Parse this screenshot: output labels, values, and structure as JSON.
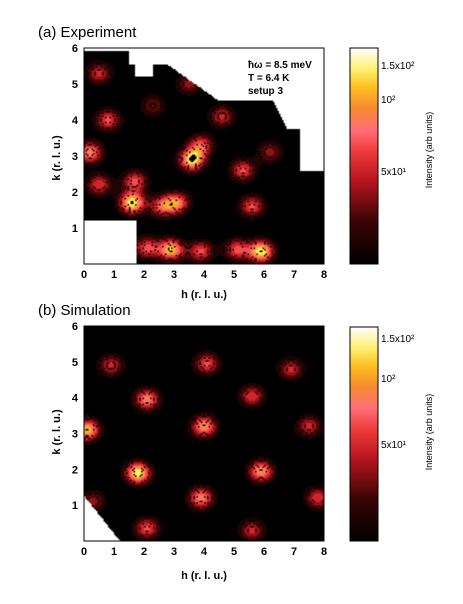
{
  "chart_data": [
    {
      "type": "heatmap",
      "title": "(a) Experiment",
      "xlabel": "h (r. l. u.)",
      "ylabel": "k (r. l. u.)",
      "xlim": [
        0,
        8
      ],
      "ylim": [
        0,
        6
      ],
      "x_ticks": [
        "0",
        "1",
        "2",
        "3",
        "4",
        "5",
        "6",
        "7",
        "8"
      ],
      "y_ticks": [
        "1",
        "2",
        "3",
        "4",
        "5",
        "6"
      ],
      "annotations": [
        "ħω = 8.5 meV",
        "T = 6.4 K",
        "setup 3"
      ],
      "colorbar": {
        "label": "Intensity (arb units)",
        "scale": "log",
        "range": [
          20,
          150
        ],
        "ticks": [
          {
            "label": "1.5x10²",
            "value": 150
          },
          {
            "label": "10²",
            "value": 100
          },
          {
            "label": "5x10¹",
            "value": 50
          }
        ]
      },
      "peaks": [
        {
          "h": 0.2,
          "k": 3.1,
          "intensity": 0.75
        },
        {
          "h": 0.5,
          "k": 5.3,
          "intensity": 0.5
        },
        {
          "h": 0.8,
          "k": 4.0,
          "intensity": 0.6
        },
        {
          "h": 0.5,
          "k": 2.2,
          "intensity": 0.55
        },
        {
          "h": 1.6,
          "k": 1.7,
          "intensity": 1.0
        },
        {
          "h": 1.7,
          "k": 2.3,
          "intensity": 0.6
        },
        {
          "h": 2.6,
          "k": 1.6,
          "intensity": 0.6
        },
        {
          "h": 3.1,
          "k": 1.7,
          "intensity": 0.7
        },
        {
          "h": 3.6,
          "k": 2.9,
          "intensity": 1.0
        },
        {
          "h": 3.9,
          "k": 3.3,
          "intensity": 0.6
        },
        {
          "h": 4.6,
          "k": 4.1,
          "intensity": 0.5
        },
        {
          "h": 5.3,
          "k": 2.6,
          "intensity": 0.6
        },
        {
          "h": 5.6,
          "k": 1.6,
          "intensity": 0.6
        },
        {
          "h": 2.9,
          "k": 0.4,
          "intensity": 0.9
        },
        {
          "h": 2.1,
          "k": 0.45,
          "intensity": 0.6
        },
        {
          "h": 3.9,
          "k": 0.35,
          "intensity": 0.6
        },
        {
          "h": 5.9,
          "k": 0.35,
          "intensity": 1.0
        },
        {
          "h": 5.1,
          "k": 0.4,
          "intensity": 0.6
        },
        {
          "h": 3.5,
          "k": 5.0,
          "intensity": 0.4
        },
        {
          "h": 2.3,
          "k": 4.4,
          "intensity": 0.35
        },
        {
          "h": 6.2,
          "k": 3.1,
          "intensity": 0.4
        },
        {
          "h": 1.1,
          "k": 0.6,
          "intensity": 0.4
        }
      ]
    },
    {
      "type": "heatmap",
      "title": "(b) Simulation",
      "xlabel": "h (r. l. u.)",
      "ylabel": "k (r. l. u.)",
      "xlim": [
        0,
        8
      ],
      "ylim": [
        0,
        6
      ],
      "x_ticks": [
        "0",
        "1",
        "2",
        "3",
        "4",
        "5",
        "6",
        "7",
        "8"
      ],
      "y_ticks": [
        "1",
        "2",
        "3",
        "4",
        "5",
        "6"
      ],
      "colorbar": {
        "label": "Intensity (arb units)",
        "scale": "log",
        "range": [
          20,
          150
        ],
        "ticks": [
          {
            "label": "1.5x10²",
            "value": 150
          },
          {
            "label": "10²",
            "value": 100
          },
          {
            "label": "5x10¹",
            "value": 50
          }
        ]
      },
      "peaks": [
        {
          "h": 0.9,
          "k": 4.9,
          "intensity": 0.5
        },
        {
          "h": 4.1,
          "k": 4.95,
          "intensity": 0.6
        },
        {
          "h": 6.9,
          "k": 4.8,
          "intensity": 0.5
        },
        {
          "h": 2.1,
          "k": 3.95,
          "intensity": 0.75
        },
        {
          "h": 5.6,
          "k": 4.05,
          "intensity": 0.55
        },
        {
          "h": 0.1,
          "k": 3.1,
          "intensity": 0.9
        },
        {
          "h": 4.0,
          "k": 3.2,
          "intensity": 0.8
        },
        {
          "h": 7.5,
          "k": 3.2,
          "intensity": 0.5
        },
        {
          "h": 1.8,
          "k": 1.9,
          "intensity": 1.0
        },
        {
          "h": 5.9,
          "k": 1.95,
          "intensity": 0.8
        },
        {
          "h": 3.9,
          "k": 1.2,
          "intensity": 0.75
        },
        {
          "h": 7.8,
          "k": 1.2,
          "intensity": 0.55
        },
        {
          "h": 2.1,
          "k": 0.35,
          "intensity": 0.6
        },
        {
          "h": 5.6,
          "k": 0.3,
          "intensity": 0.5
        },
        {
          "h": 0.3,
          "k": 1.1,
          "intensity": 0.4
        }
      ]
    }
  ]
}
